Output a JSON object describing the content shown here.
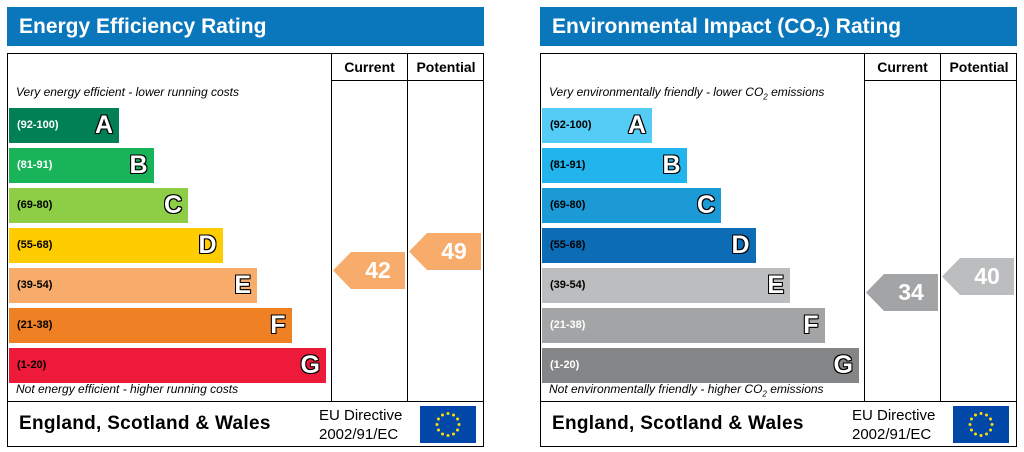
{
  "colors": {
    "title_bg": "#0a77bd",
    "eer_bands": [
      "#008054",
      "#19b459",
      "#8dce46",
      "#ffcc00",
      "#f7ac6b",
      "#f08024",
      "#ed1b39"
    ],
    "ei_bands": [
      "#55ccf5",
      "#22b4ec",
      "#1c9ad6",
      "#0c6db6",
      "#bcbdbe",
      "#a3a4a5",
      "#848586"
    ],
    "eer_range_text": [
      "#ffffff",
      "#ffffff",
      "#000000",
      "#000000",
      "#000000",
      "#000000",
      "#000000"
    ],
    "ei_range_text": [
      "#000000",
      "#000000",
      "#000000",
      "#000000",
      "#000000",
      "#ffffff",
      "#ffffff"
    ]
  },
  "chart_data": [
    {
      "type": "bar",
      "title": "Energy Efficiency Rating",
      "columns": [
        "Current",
        "Potential"
      ],
      "top_note": "Very energy efficient - lower running costs",
      "bottom_note": "Not energy efficient - higher running costs",
      "bands": [
        {
          "range": "(92-100)",
          "letter": "A",
          "min": 92,
          "max": 100
        },
        {
          "range": "(81-91)",
          "letter": "B",
          "min": 81,
          "max": 91
        },
        {
          "range": "(69-80)",
          "letter": "C",
          "min": 69,
          "max": 80
        },
        {
          "range": "(55-68)",
          "letter": "D",
          "min": 55,
          "max": 68
        },
        {
          "range": "(39-54)",
          "letter": "E",
          "min": 39,
          "max": 54
        },
        {
          "range": "(21-38)",
          "letter": "F",
          "min": 21,
          "max": 38
        },
        {
          "range": "(1-20)",
          "letter": "G",
          "min": 1,
          "max": 20
        }
      ],
      "current": 42,
      "potential": 49,
      "footer_region": "England, Scotland & Wales",
      "footer_directive_line1": "EU Directive",
      "footer_directive_line2": "2002/91/EC"
    },
    {
      "type": "bar",
      "title_main": "Environmental Impact (CO",
      "title_sub": "2",
      "title_end": ") Rating",
      "columns": [
        "Current",
        "Potential"
      ],
      "top_note_main": "Very environmentally friendly - lower CO",
      "top_note_sub": "2",
      "top_note_end": " emissions",
      "bottom_note_main": "Not environmentally friendly - higher CO",
      "bottom_note_sub": "2",
      "bottom_note_end": " emissions",
      "bands": [
        {
          "range": "(92-100)",
          "letter": "A",
          "min": 92,
          "max": 100
        },
        {
          "range": "(81-91)",
          "letter": "B",
          "min": 81,
          "max": 91
        },
        {
          "range": "(69-80)",
          "letter": "C",
          "min": 69,
          "max": 80
        },
        {
          "range": "(55-68)",
          "letter": "D",
          "min": 55,
          "max": 68
        },
        {
          "range": "(39-54)",
          "letter": "E",
          "min": 39,
          "max": 54
        },
        {
          "range": "(21-38)",
          "letter": "F",
          "min": 21,
          "max": 38
        },
        {
          "range": "(1-20)",
          "letter": "G",
          "min": 1,
          "max": 20
        }
      ],
      "current": 34,
      "potential": 40,
      "footer_region": "England, Scotland & Wales",
      "footer_directive_line1": "EU Directive",
      "footer_directive_line2": "2002/91/EC"
    }
  ]
}
